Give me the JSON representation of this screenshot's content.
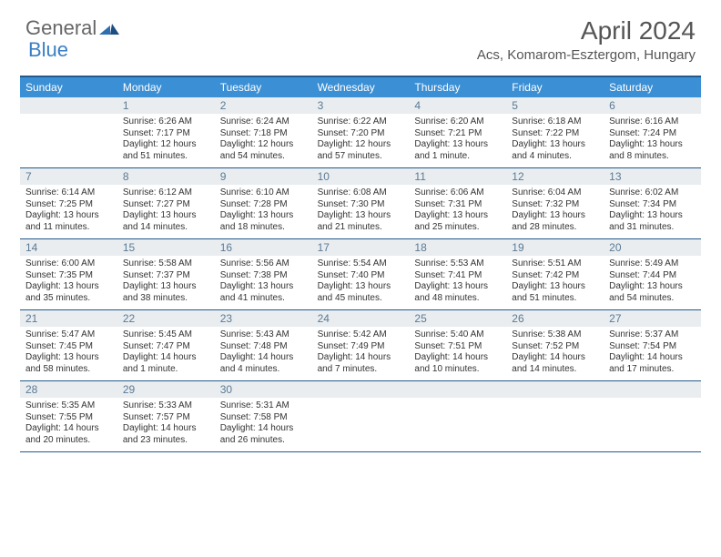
{
  "logo": {
    "part1": "General",
    "part2": "Blue"
  },
  "title": "April 2024",
  "location": "Acs, Komarom-Esztergom, Hungary",
  "colors": {
    "header_bg": "#3b8fd4",
    "border": "#235a8c",
    "daynum_bg": "#e9edf0",
    "daynum_color": "#5b7a95",
    "text": "#333333",
    "logo_gray": "#666666",
    "logo_blue": "#3b7fc4"
  },
  "dow": [
    "Sunday",
    "Monday",
    "Tuesday",
    "Wednesday",
    "Thursday",
    "Friday",
    "Saturday"
  ],
  "weeks": [
    [
      {
        "n": "",
        "sr": "",
        "ss": "",
        "dl": ""
      },
      {
        "n": "1",
        "sr": "Sunrise: 6:26 AM",
        "ss": "Sunset: 7:17 PM",
        "dl": "Daylight: 12 hours and 51 minutes."
      },
      {
        "n": "2",
        "sr": "Sunrise: 6:24 AM",
        "ss": "Sunset: 7:18 PM",
        "dl": "Daylight: 12 hours and 54 minutes."
      },
      {
        "n": "3",
        "sr": "Sunrise: 6:22 AM",
        "ss": "Sunset: 7:20 PM",
        "dl": "Daylight: 12 hours and 57 minutes."
      },
      {
        "n": "4",
        "sr": "Sunrise: 6:20 AM",
        "ss": "Sunset: 7:21 PM",
        "dl": "Daylight: 13 hours and 1 minute."
      },
      {
        "n": "5",
        "sr": "Sunrise: 6:18 AM",
        "ss": "Sunset: 7:22 PM",
        "dl": "Daylight: 13 hours and 4 minutes."
      },
      {
        "n": "6",
        "sr": "Sunrise: 6:16 AM",
        "ss": "Sunset: 7:24 PM",
        "dl": "Daylight: 13 hours and 8 minutes."
      }
    ],
    [
      {
        "n": "7",
        "sr": "Sunrise: 6:14 AM",
        "ss": "Sunset: 7:25 PM",
        "dl": "Daylight: 13 hours and 11 minutes."
      },
      {
        "n": "8",
        "sr": "Sunrise: 6:12 AM",
        "ss": "Sunset: 7:27 PM",
        "dl": "Daylight: 13 hours and 14 minutes."
      },
      {
        "n": "9",
        "sr": "Sunrise: 6:10 AM",
        "ss": "Sunset: 7:28 PM",
        "dl": "Daylight: 13 hours and 18 minutes."
      },
      {
        "n": "10",
        "sr": "Sunrise: 6:08 AM",
        "ss": "Sunset: 7:30 PM",
        "dl": "Daylight: 13 hours and 21 minutes."
      },
      {
        "n": "11",
        "sr": "Sunrise: 6:06 AM",
        "ss": "Sunset: 7:31 PM",
        "dl": "Daylight: 13 hours and 25 minutes."
      },
      {
        "n": "12",
        "sr": "Sunrise: 6:04 AM",
        "ss": "Sunset: 7:32 PM",
        "dl": "Daylight: 13 hours and 28 minutes."
      },
      {
        "n": "13",
        "sr": "Sunrise: 6:02 AM",
        "ss": "Sunset: 7:34 PM",
        "dl": "Daylight: 13 hours and 31 minutes."
      }
    ],
    [
      {
        "n": "14",
        "sr": "Sunrise: 6:00 AM",
        "ss": "Sunset: 7:35 PM",
        "dl": "Daylight: 13 hours and 35 minutes."
      },
      {
        "n": "15",
        "sr": "Sunrise: 5:58 AM",
        "ss": "Sunset: 7:37 PM",
        "dl": "Daylight: 13 hours and 38 minutes."
      },
      {
        "n": "16",
        "sr": "Sunrise: 5:56 AM",
        "ss": "Sunset: 7:38 PM",
        "dl": "Daylight: 13 hours and 41 minutes."
      },
      {
        "n": "17",
        "sr": "Sunrise: 5:54 AM",
        "ss": "Sunset: 7:40 PM",
        "dl": "Daylight: 13 hours and 45 minutes."
      },
      {
        "n": "18",
        "sr": "Sunrise: 5:53 AM",
        "ss": "Sunset: 7:41 PM",
        "dl": "Daylight: 13 hours and 48 minutes."
      },
      {
        "n": "19",
        "sr": "Sunrise: 5:51 AM",
        "ss": "Sunset: 7:42 PM",
        "dl": "Daylight: 13 hours and 51 minutes."
      },
      {
        "n": "20",
        "sr": "Sunrise: 5:49 AM",
        "ss": "Sunset: 7:44 PM",
        "dl": "Daylight: 13 hours and 54 minutes."
      }
    ],
    [
      {
        "n": "21",
        "sr": "Sunrise: 5:47 AM",
        "ss": "Sunset: 7:45 PM",
        "dl": "Daylight: 13 hours and 58 minutes."
      },
      {
        "n": "22",
        "sr": "Sunrise: 5:45 AM",
        "ss": "Sunset: 7:47 PM",
        "dl": "Daylight: 14 hours and 1 minute."
      },
      {
        "n": "23",
        "sr": "Sunrise: 5:43 AM",
        "ss": "Sunset: 7:48 PM",
        "dl": "Daylight: 14 hours and 4 minutes."
      },
      {
        "n": "24",
        "sr": "Sunrise: 5:42 AM",
        "ss": "Sunset: 7:49 PM",
        "dl": "Daylight: 14 hours and 7 minutes."
      },
      {
        "n": "25",
        "sr": "Sunrise: 5:40 AM",
        "ss": "Sunset: 7:51 PM",
        "dl": "Daylight: 14 hours and 10 minutes."
      },
      {
        "n": "26",
        "sr": "Sunrise: 5:38 AM",
        "ss": "Sunset: 7:52 PM",
        "dl": "Daylight: 14 hours and 14 minutes."
      },
      {
        "n": "27",
        "sr": "Sunrise: 5:37 AM",
        "ss": "Sunset: 7:54 PM",
        "dl": "Daylight: 14 hours and 17 minutes."
      }
    ],
    [
      {
        "n": "28",
        "sr": "Sunrise: 5:35 AM",
        "ss": "Sunset: 7:55 PM",
        "dl": "Daylight: 14 hours and 20 minutes."
      },
      {
        "n": "29",
        "sr": "Sunrise: 5:33 AM",
        "ss": "Sunset: 7:57 PM",
        "dl": "Daylight: 14 hours and 23 minutes."
      },
      {
        "n": "30",
        "sr": "Sunrise: 5:31 AM",
        "ss": "Sunset: 7:58 PM",
        "dl": "Daylight: 14 hours and 26 minutes."
      },
      {
        "n": "",
        "sr": "",
        "ss": "",
        "dl": ""
      },
      {
        "n": "",
        "sr": "",
        "ss": "",
        "dl": ""
      },
      {
        "n": "",
        "sr": "",
        "ss": "",
        "dl": ""
      },
      {
        "n": "",
        "sr": "",
        "ss": "",
        "dl": ""
      }
    ]
  ]
}
